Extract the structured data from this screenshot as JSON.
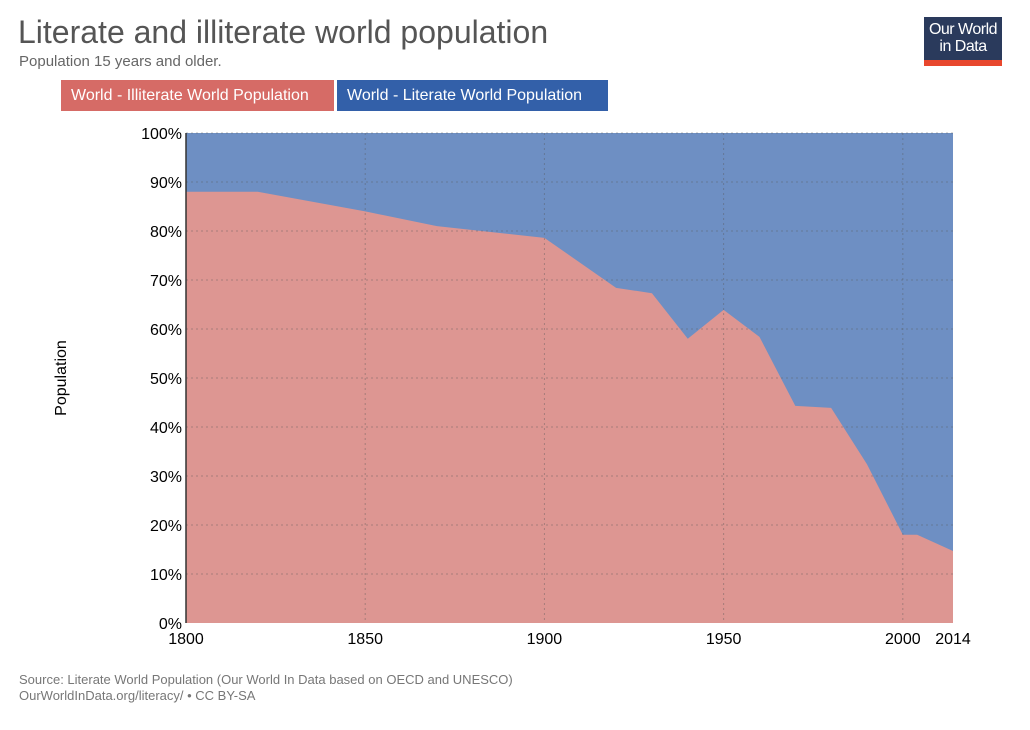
{
  "header": {
    "title": "Literate and illiterate world population",
    "subtitle": "Population 15 years and older.",
    "logo_text": "Our World in Data"
  },
  "footer": {
    "source": "Source: Literate World Population (Our World In Data based on OECD and UNESCO)",
    "url": "OurWorldInData.org/literacy/ • CC BY-SA"
  },
  "chart_data": {
    "type": "area",
    "stacked": true,
    "title": "Literate and illiterate world population",
    "ylabel": "Population",
    "xlabel": "",
    "xlim": [
      1800,
      2014
    ],
    "ylim": [
      0,
      100
    ],
    "x_ticks": [
      "1800",
      "1850",
      "1900",
      "1950",
      "2000",
      "2014"
    ],
    "x_tick_values": [
      1800,
      1850,
      1900,
      1950,
      2000,
      2014
    ],
    "y_ticks": [
      "0%",
      "10%",
      "20%",
      "30%",
      "40%",
      "50%",
      "60%",
      "70%",
      "80%",
      "90%",
      "100%"
    ],
    "legend_position": "top-left",
    "x": [
      1800,
      1820,
      1850,
      1870,
      1900,
      1920,
      1930,
      1940,
      1950,
      1960,
      1970,
      1980,
      1990,
      2000,
      2004,
      2014
    ],
    "series": [
      {
        "name": "World - Illiterate World Population",
        "color": "#dd9692",
        "legend_color": "#d66b66",
        "values": [
          88,
          88,
          84,
          81,
          78.6,
          68.4,
          67.3,
          58,
          63.9,
          58.4,
          44.3,
          43.9,
          32.4,
          18,
          18,
          14.7
        ]
      },
      {
        "name": "World - Literate World Population",
        "color": "#6e8fc3",
        "legend_color": "#3360a9",
        "values": [
          12,
          12,
          16,
          19,
          21.4,
          31.6,
          32.7,
          42,
          36.1,
          41.6,
          55.7,
          56.1,
          67.6,
          82,
          82,
          85.3
        ]
      }
    ]
  }
}
